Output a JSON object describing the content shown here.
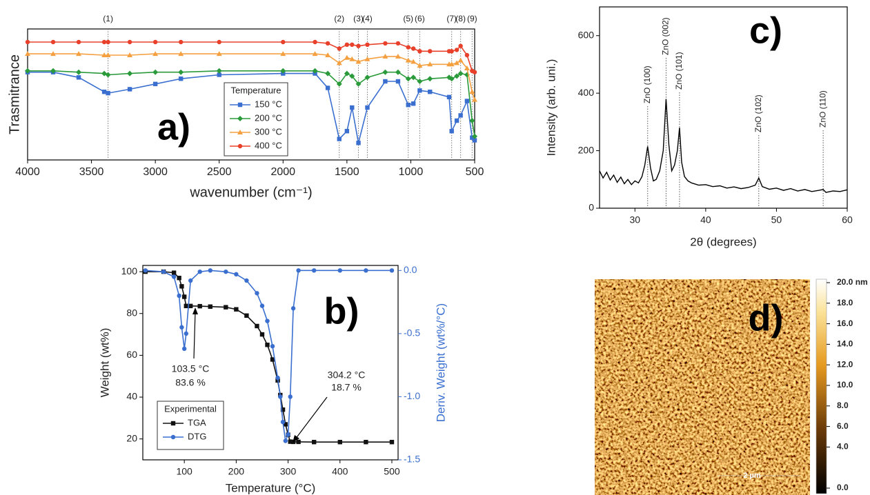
{
  "chart_data": [
    {
      "type": "line",
      "panel_label": "a)",
      "ylabel": "Trasmitrance",
      "xlabel": "wavenumber (cm⁻¹)",
      "xlim": [
        4000,
        500
      ],
      "xticks": [
        4000,
        3500,
        3000,
        2500,
        2000,
        1500,
        1000,
        500
      ],
      "ylim": [
        0,
        100
      ],
      "legend_title": "Temperature",
      "peaks": [
        {
          "label": "(1)",
          "x": 3370
        },
        {
          "label": "(2)",
          "x": 1560
        },
        {
          "label": "(3)",
          "x": 1410
        },
        {
          "label": "(4)",
          "x": 1340
        },
        {
          "label": "(5)",
          "x": 1020
        },
        {
          "label": "(6)",
          "x": 930
        },
        {
          "label": "(7)",
          "x": 680
        },
        {
          "label": "(8)",
          "x": 610
        },
        {
          "label": "(9)",
          "x": 520
        }
      ],
      "x": [
        4000,
        3800,
        3600,
        3400,
        3370,
        3200,
        3000,
        2800,
        2500,
        2000,
        1750,
        1650,
        1560,
        1500,
        1460,
        1410,
        1340,
        1200,
        1100,
        1020,
        980,
        930,
        850,
        700,
        680,
        640,
        610,
        560,
        520,
        500
      ],
      "series": [
        {
          "name": "150 °C",
          "color": "#3a6fd0",
          "marker": "square",
          "values": [
            67,
            67,
            63,
            52,
            51,
            54,
            58,
            62,
            65,
            66,
            66,
            55,
            16,
            22,
            40,
            13,
            40,
            60,
            60,
            42,
            43,
            53,
            52,
            48,
            22,
            30,
            34,
            45,
            17,
            15
          ]
        },
        {
          "name": "200 °C",
          "color": "#2a9a3a",
          "marker": "diamond",
          "values": [
            68,
            68,
            67,
            66,
            65,
            66,
            67,
            67,
            68,
            68,
            68,
            66,
            58,
            66,
            64,
            58,
            63,
            67,
            67,
            62,
            63,
            60,
            62,
            63,
            62,
            64,
            66,
            65,
            30,
            18
          ]
        },
        {
          "name": "300 °C",
          "color": "#f5a040",
          "marker": "triangle",
          "values": [
            81,
            81,
            81,
            80,
            80,
            80,
            81,
            81,
            81,
            81,
            81,
            80,
            74,
            78,
            77,
            75,
            77,
            79,
            79,
            76,
            75,
            72,
            73,
            73,
            73,
            74,
            76,
            70,
            52,
            46
          ]
        },
        {
          "name": "400 °C",
          "color": "#e8402a",
          "marker": "circle",
          "values": [
            90,
            90,
            90,
            90,
            90,
            90,
            90,
            90,
            90,
            90,
            90,
            89,
            85,
            88,
            88,
            87,
            88,
            89,
            89,
            86,
            85,
            83,
            83,
            83,
            83,
            84,
            87,
            80,
            68,
            67
          ]
        }
      ]
    },
    {
      "type": "line",
      "panel_label": "b)",
      "ylabel": "Weight (wt%)",
      "y2label": "Deriv. Weight (wt%/°C)",
      "xlabel": "Temperature (°C)",
      "xlim": [
        20,
        512
      ],
      "xticks": [
        100,
        200,
        300,
        400,
        500
      ],
      "ylim": [
        10,
        103
      ],
      "yticks": [
        20,
        40,
        60,
        80,
        100
      ],
      "y2lim": [
        -1.5,
        0.04
      ],
      "y2ticks": [
        {
          "value": -1.5,
          "label": "-1.5"
        },
        {
          "value": -1,
          "label": "-1.0"
        },
        -0.5,
        {
          "value": 0,
          "label": "0.0"
        }
      ],
      "y2color": "#3a6fd0",
      "legend_title": "Experimental",
      "annotations": [
        {
          "text": "103.5 °C"
        },
        {
          "text": "83.6 %"
        },
        {
          "text": "304.2 °C"
        },
        {
          "text": "18.7 %"
        }
      ],
      "x": [
        25,
        60,
        80,
        90,
        95,
        100,
        103.5,
        112,
        130,
        150,
        180,
        200,
        220,
        240,
        250,
        260,
        270,
        280,
        285,
        290,
        295,
        300,
        304.2,
        310,
        320,
        350,
        400,
        450,
        500
      ],
      "series": [
        {
          "name": "TGA",
          "color": "#111111",
          "marker": "square",
          "values": [
            100,
            100,
            99.5,
            97,
            93,
            88,
            83.6,
            83.6,
            83.5,
            83.3,
            83,
            82,
            79,
            74,
            70,
            65,
            58,
            48,
            41,
            34,
            27,
            22,
            18.7,
            18.6,
            18.6,
            18.5,
            18.5,
            18.5,
            18.5
          ]
        },
        {
          "name": "DTG",
          "color": "#3a6fd0",
          "marker": "circle",
          "axis": "y2",
          "values": [
            0,
            -0.01,
            -0.05,
            -0.2,
            -0.45,
            -0.62,
            -0.5,
            -0.08,
            -0.01,
            0,
            -0.01,
            -0.03,
            -0.08,
            -0.18,
            -0.28,
            -0.4,
            -0.6,
            -0.85,
            -1,
            -1.2,
            -1.35,
            -1.3,
            -1,
            -0.3,
            0,
            0,
            0,
            0,
            0
          ]
        }
      ]
    },
    {
      "type": "line",
      "panel_label": "c)",
      "ylabel": "Intensity (arb. uni.)",
      "xlabel": "2θ (degrees)",
      "xlim": [
        25,
        60
      ],
      "xticks": [
        30,
        40,
        50,
        60
      ],
      "ylim": [
        0,
        700
      ],
      "yticks": [
        0,
        200,
        400,
        600
      ],
      "peaks": [
        {
          "label": "ZnO (100)",
          "x": 31.8
        },
        {
          "label": "ZnO (002)",
          "x": 34.4
        },
        {
          "label": "ZnO (101)",
          "x": 36.3
        },
        {
          "label": "ZnO (102)",
          "x": 47.5
        },
        {
          "label": "ZnO (110)",
          "x": 56.6
        }
      ],
      "x": [
        25,
        25.5,
        26,
        26.5,
        27,
        27.5,
        28,
        28.5,
        29,
        29.5,
        30,
        30.5,
        31,
        31.4,
        31.8,
        32.2,
        32.6,
        33,
        33.5,
        34,
        34.4,
        34.8,
        35.2,
        35.6,
        36,
        36.3,
        36.6,
        37,
        37.5,
        38,
        39,
        40,
        41,
        42,
        43,
        44,
        45,
        46,
        47,
        47.5,
        48,
        49,
        50,
        51,
        52,
        53,
        54,
        55,
        56,
        56.6,
        57,
        58,
        59,
        60
      ],
      "series": [
        {
          "color": "#000000",
          "values": [
            130,
            105,
            125,
            98,
            115,
            90,
            108,
            85,
            100,
            82,
            95,
            88,
            110,
            150,
            215,
            140,
            95,
            100,
            130,
            200,
            380,
            220,
            130,
            150,
            200,
            280,
            160,
            110,
            95,
            88,
            80,
            82,
            75,
            78,
            70,
            74,
            68,
            72,
            80,
            105,
            75,
            66,
            70,
            62,
            68,
            60,
            65,
            58,
            62,
            65,
            55,
            60,
            58,
            64
          ]
        }
      ]
    },
    {
      "type": "image",
      "panel_label": "d)",
      "scale_bar": "2 µm",
      "clim": [
        0,
        20
      ],
      "cticks": [
        {
          "value": 0,
          "label": "0.0"
        },
        {
          "value": 4,
          "label": "4.0"
        },
        {
          "value": 6,
          "label": "6.0"
        },
        {
          "value": 8,
          "label": "8.0"
        },
        {
          "value": 10,
          "label": "10.0"
        },
        {
          "value": 12,
          "label": "12.0"
        },
        {
          "value": 14,
          "label": "14.0"
        },
        {
          "value": 16,
          "label": "16.0"
        },
        {
          "value": 18,
          "label": "18.0"
        },
        {
          "value": 20,
          "label": "20.0 nm"
        }
      ]
    }
  ]
}
